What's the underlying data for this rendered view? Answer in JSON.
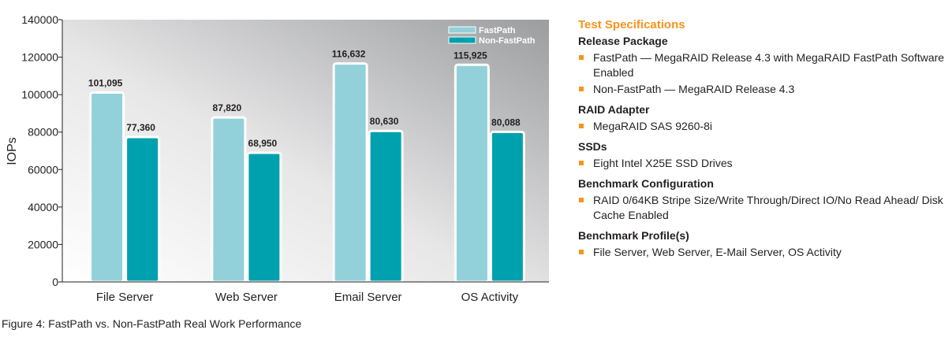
{
  "chart_data": {
    "type": "bar",
    "title": "",
    "xlabel": "",
    "ylabel": "IOPs",
    "ylim": [
      0,
      140000
    ],
    "yticks": [
      0,
      20000,
      40000,
      60000,
      80000,
      100000,
      120000,
      140000
    ],
    "ytick_labels": [
      "0",
      "20000",
      "40000",
      "60000",
      "80000",
      "100000",
      "120000",
      "140000"
    ],
    "categories": [
      "File Server",
      "Web Server",
      "Email Server",
      "OS Activity"
    ],
    "series": [
      {
        "name": "FastPath",
        "values": [
          101095,
          87820,
          116632,
          115925
        ],
        "labels": [
          "101,095",
          "87,820",
          "116,632",
          "115,925"
        ],
        "color": "#92d1da"
      },
      {
        "name": "Non-FastPath",
        "values": [
          77360,
          68950,
          80630,
          80088
        ],
        "labels": [
          "77,360",
          "68,950",
          "80,630",
          "80,088"
        ],
        "color": "#00a1ae"
      }
    ],
    "grid": false,
    "legend_position": "top-right"
  },
  "specs": {
    "title": "Test Specifications",
    "sections": [
      {
        "heading": "Release Package",
        "items": [
          "FastPath — MegaRAID Release 4.3 with MegaRAID FastPath Software Enabled",
          "Non-FastPath — MegaRAID Release 4.3"
        ]
      },
      {
        "heading": "RAID Adapter",
        "items": [
          "MegaRAID SAS 9260-8i"
        ]
      },
      {
        "heading": "SSDs",
        "items": [
          "Eight Intel X25E SSD Drives"
        ]
      },
      {
        "heading": "Benchmark Configuration",
        "items": [
          "RAID 0/64KB Stripe Size/Write Through/Direct IO/No Read Ahead/ Disk Cache Enabled"
        ]
      },
      {
        "heading": "Benchmark Profile(s)",
        "items": [
          "File Server, Web Server, E-Mail Server, OS Activity"
        ]
      }
    ]
  },
  "caption": "Figure 4: FastPath vs. Non-FastPath Real Work Performance",
  "colors": {
    "accent": "#f7941d",
    "fastpath": "#92d1da",
    "nonfastpath": "#00a1ae"
  }
}
